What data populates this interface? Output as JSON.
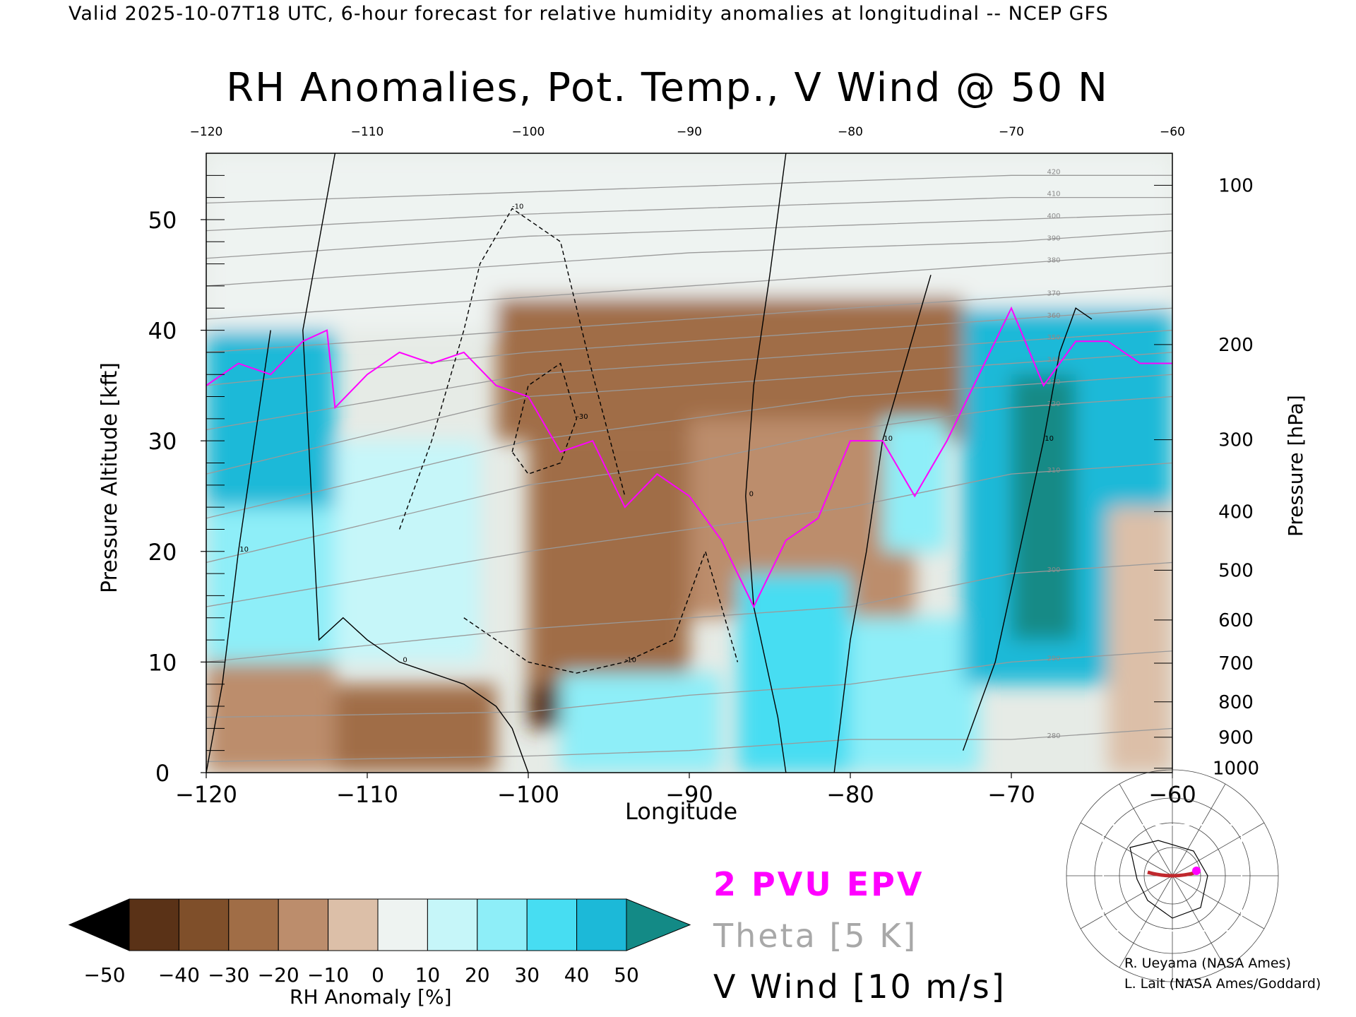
{
  "header": "Valid 2025-10-07T18 UTC, 6-hour forecast for relative humidity anomalies at longitudinal -- NCEP GFS",
  "chart_data": {
    "type": "heatmap",
    "title": "RH Anomalies, Pot. Temp., V Wind @ 50 N",
    "xlabel": "Longitude",
    "ylabel": "Pressure Altitude [kft]",
    "y2label": "Pressure [hPa]",
    "xlim": [
      -120,
      -60
    ],
    "ylim": [
      0,
      56
    ],
    "x_ticks": [
      "-120",
      "-110",
      "-100",
      "-90",
      "-80",
      "-70",
      "-60"
    ],
    "x_ticks_top": [
      "-120",
      "-110",
      "-100",
      "-90",
      "-80",
      "-70",
      "-60"
    ],
    "x_tick_values": [
      -120,
      -110,
      -100,
      -90,
      -80,
      -70,
      -60
    ],
    "y_ticks": [
      "0",
      "10",
      "20",
      "30",
      "40",
      "50"
    ],
    "y_tick_values": [
      0,
      10,
      20,
      30,
      40,
      50
    ],
    "pressure_ticks": [
      {
        "label": "100",
        "kft": 53.1
      },
      {
        "label": "200",
        "kft": 38.7
      },
      {
        "label": "300",
        "kft": 30.1
      },
      {
        "label": "400",
        "kft": 23.6
      },
      {
        "label": "500",
        "kft": 18.3
      },
      {
        "label": "600",
        "kft": 13.8
      },
      {
        "label": "700",
        "kft": 9.9
      },
      {
        "label": "800",
        "kft": 6.4
      },
      {
        "label": "900",
        "kft": 3.2
      },
      {
        "label": "1000",
        "kft": 0.4
      }
    ],
    "colorbar": {
      "label": "RH Anomaly [%]",
      "ticks": [
        "-50",
        "-40",
        "-30",
        "-20",
        "-10",
        "0",
        "10",
        "20",
        "30",
        "40",
        "50"
      ],
      "colors": [
        "#2e1608",
        "#5a3217",
        "#7f4f2a",
        "#a06d46",
        "#bc8d6c",
        "#dcbfa8",
        "#eef3f1",
        "#c6f6f9",
        "#8eeef8",
        "#47ddf2",
        "#1cb9d8",
        "#0a8aa8"
      ],
      "under_color": "#000000",
      "over_color": "#138a86"
    },
    "rh_anomaly_regions": [
      {
        "x": [
          -120,
          -60
        ],
        "y": [
          40,
          56
        ],
        "value": 0
      },
      {
        "x": [
          -120,
          -112
        ],
        "y": [
          10,
          40
        ],
        "value": 25
      },
      {
        "x": [
          -120,
          -112
        ],
        "y": [
          24,
          40
        ],
        "value": 40
      },
      {
        "x": [
          -112,
          -103
        ],
        "y": [
          10,
          30
        ],
        "value": 15
      },
      {
        "x": [
          -102,
          -73
        ],
        "y": [
          30,
          43
        ],
        "value": -30
      },
      {
        "x": [
          -100,
          -90
        ],
        "y": [
          8,
          30
        ],
        "value": -25
      },
      {
        "x": [
          -90,
          -76
        ],
        "y": [
          14,
          32
        ],
        "value": -20
      },
      {
        "x": [
          -120,
          -112
        ],
        "y": [
          0,
          10
        ],
        "value": -20
      },
      {
        "x": [
          -112,
          -102
        ],
        "y": [
          0,
          8
        ],
        "value": -25
      },
      {
        "x": [
          -100,
          -98
        ],
        "y": [
          4,
          8
        ],
        "value": -50
      },
      {
        "x": [
          -98,
          -88
        ],
        "y": [
          0,
          9
        ],
        "value": 25
      },
      {
        "x": [
          -87,
          -80
        ],
        "y": [
          0,
          18
        ],
        "value": 30
      },
      {
        "x": [
          -80,
          -72
        ],
        "y": [
          0,
          14
        ],
        "value": 25
      },
      {
        "x": [
          -73,
          -60
        ],
        "y": [
          8,
          42
        ],
        "value": 40
      },
      {
        "x": [
          -70,
          -66
        ],
        "y": [
          12,
          36
        ],
        "value": 55
      },
      {
        "x": [
          -78,
          -74
        ],
        "y": [
          20,
          32
        ],
        "value": 20
      },
      {
        "x": [
          -64,
          -60
        ],
        "y": [
          0,
          24
        ],
        "value": -10
      }
    ],
    "epv_2pvu": {
      "x": [
        -120,
        -118,
        -116,
        -114,
        -112.5,
        -112,
        -110,
        -108,
        -106,
        -104,
        -102,
        -100,
        -98,
        -96,
        -94,
        -92,
        -90,
        -88,
        -86,
        -84,
        -82,
        -80,
        -78,
        -76,
        -74,
        -72,
        -70,
        -68,
        -66,
        -64,
        -62,
        -60
      ],
      "y": [
        35,
        37,
        36,
        39,
        40,
        33,
        36,
        38,
        37,
        38,
        35,
        34,
        29,
        30,
        24,
        27,
        25,
        21,
        15,
        21,
        23,
        30,
        30,
        25,
        30,
        36,
        42,
        35,
        39,
        39,
        37,
        37
      ]
    },
    "theta_contours": [
      {
        "label": "280",
        "x": [
          -120,
          -100,
          -90,
          -80,
          -70,
          -60
        ],
        "y": [
          1,
          1.5,
          2,
          3,
          3,
          4
        ]
      },
      {
        "label": "290",
        "x": [
          -120,
          -100,
          -90,
          -80,
          -70,
          -60
        ],
        "y": [
          5,
          5.5,
          7,
          8,
          10,
          11
        ]
      },
      {
        "label": "300",
        "x": [
          -120,
          -100,
          -90,
          -80,
          -70,
          -60
        ],
        "y": [
          10,
          13,
          14,
          15,
          18,
          19
        ]
      },
      {
        "label": "310",
        "x": [
          -120,
          -100,
          -90,
          -80,
          -70,
          -60
        ],
        "y": [
          15,
          20,
          22,
          24,
          27,
          28
        ]
      },
      {
        "label": "320",
        "x": [
          -120,
          -100,
          -90,
          -80,
          -70,
          -60
        ],
        "y": [
          19,
          26,
          28,
          31,
          33,
          34
        ]
      },
      {
        "label": "330",
        "x": [
          -120,
          -100,
          -90,
          -80,
          -70,
          -60
        ],
        "y": [
          23,
          30,
          32,
          34,
          35,
          36
        ]
      },
      {
        "label": "340",
        "x": [
          -120,
          -100,
          -90,
          -80,
          -70,
          -60
        ],
        "y": [
          27,
          34,
          35,
          36,
          37,
          38
        ]
      },
      {
        "label": "350",
        "x": [
          -120,
          -100,
          -90,
          -80,
          -70,
          -60
        ],
        "y": [
          31,
          36,
          37,
          38,
          39,
          40
        ]
      },
      {
        "label": "360",
        "x": [
          -120,
          -100,
          -90,
          -80,
          -70,
          -60
        ],
        "y": [
          35,
          38,
          39,
          40,
          41,
          42
        ]
      },
      {
        "label": "370",
        "x": [
          -120,
          -100,
          -90,
          -80,
          -70,
          -60
        ],
        "y": [
          38,
          40,
          41,
          42,
          43,
          44
        ]
      },
      {
        "label": "380",
        "x": [
          -120,
          -100,
          -90,
          -80,
          -70,
          -60
        ],
        "y": [
          41,
          43,
          44,
          45,
          46,
          47
        ]
      },
      {
        "label": "390",
        "x": [
          -120,
          -100,
          -90,
          -80,
          -70,
          -60
        ],
        "y": [
          44,
          46,
          47,
          47.5,
          48,
          49
        ]
      },
      {
        "label": "400",
        "x": [
          -120,
          -100,
          -90,
          -80,
          -70,
          -60
        ],
        "y": [
          46.5,
          48.5,
          49,
          49.5,
          50,
          50.5
        ]
      },
      {
        "label": "410",
        "x": [
          -120,
          -100,
          -90,
          -80,
          -70,
          -60
        ],
        "y": [
          49,
          50.5,
          51,
          51.5,
          52,
          52
        ]
      },
      {
        "label": "420",
        "x": [
          -120,
          -100,
          -90,
          -80,
          -70,
          -60
        ],
        "y": [
          51.5,
          52.5,
          53,
          53.5,
          54,
          54
        ]
      }
    ],
    "vwind_contours": [
      {
        "label": "0",
        "dashed": false,
        "x": [
          -112,
          -114,
          -113,
          -111.5,
          -110,
          -108,
          -106,
          -104,
          -102,
          -101,
          -100
        ],
        "y": [
          56,
          40,
          12,
          14,
          12,
          10,
          9,
          8,
          6,
          4,
          0
        ]
      },
      {
        "label": "10",
        "dashed": false,
        "x": [
          -120,
          -119,
          -118,
          -117,
          -116
        ],
        "y": [
          0,
          8,
          20,
          30,
          40
        ]
      },
      {
        "label": "0",
        "dashed": false,
        "x": [
          -84,
          -85,
          -86,
          -86.5,
          -86,
          -84.5,
          -84
        ],
        "y": [
          56,
          45,
          35,
          25,
          15,
          5,
          0
        ]
      },
      {
        "label": "10",
        "dashed": false,
        "x": [
          -81,
          -80,
          -79,
          -78,
          -76,
          -75
        ],
        "y": [
          0,
          12,
          20,
          30,
          40,
          45
        ]
      },
      {
        "label": "-10",
        "dashed": true,
        "x": [
          -108,
          -106,
          -104,
          -103,
          -101,
          -98,
          -96,
          -94
        ],
        "y": [
          22,
          30,
          40,
          46,
          51,
          48,
          36,
          25
        ]
      },
      {
        "label": "-10",
        "dashed": true,
        "x": [
          -104,
          -102,
          -100,
          -97,
          -94,
          -91,
          -89,
          -87
        ],
        "y": [
          14,
          12,
          10,
          9,
          10,
          12,
          20,
          10
        ]
      },
      {
        "label": "-30",
        "dashed": true,
        "x": [
          -101,
          -100,
          -98,
          -97,
          -98,
          -100,
          -101
        ],
        "y": [
          29,
          35,
          37,
          32,
          28,
          27,
          29
        ]
      },
      {
        "label": "10",
        "dashed": false,
        "x": [
          -73,
          -71,
          -69.5,
          -68,
          -67,
          -66,
          -65
        ],
        "y": [
          2,
          10,
          20,
          30,
          38,
          42,
          41
        ]
      }
    ]
  },
  "legend": {
    "epv": "2 PVU EPV",
    "theta": "Theta [5 K]",
    "wind": "V Wind [10 m/s]"
  },
  "credits": [
    "R. Ueyama (NASA Ames)",
    "L. Lait (NASA Ames/Goddard)"
  ],
  "inset_map": {
    "track_longitudes": [
      -120,
      -60
    ],
    "track_latitude": 50,
    "track_color": "#c0282d",
    "point_color": "#ff00ff"
  }
}
